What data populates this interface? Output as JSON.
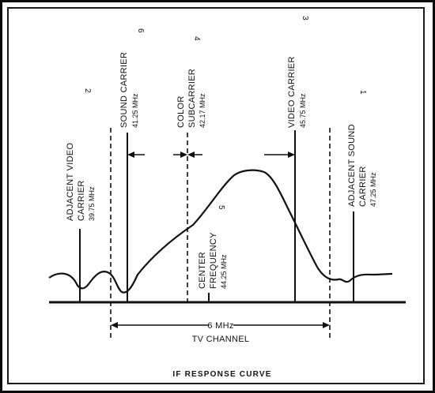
{
  "caption": "IF RESPONSE CURVE",
  "channel": {
    "width": "6 MHz",
    "name": "TV CHANNEL"
  },
  "labels": {
    "adjacent_video": {
      "number": "2",
      "line1": "ADJACENT VIDEO",
      "line2": "CARRIER",
      "freq": "39.75 MHz"
    },
    "sound_carrier": {
      "number": "6",
      "line1": "SOUND CARRIER",
      "freq": "41.25 MHz"
    },
    "color_subcarrier": {
      "number": "4",
      "line1": "COLOR",
      "line2": "SUBCARRIER",
      "freq": "42.17 MHz"
    },
    "video_carrier": {
      "number": "3",
      "line1": "VIDEO CARRIER",
      "freq": "45.75 MHz"
    },
    "adjacent_sound": {
      "number": "1",
      "line1": "ADJACENT SOUND",
      "line2": "CARRIER",
      "freq": "47.25 MHz"
    },
    "center_frequency": {
      "number": "5",
      "line1": "CENTER",
      "line2": "FREQUENCY",
      "freq": "44.25 MHz"
    }
  },
  "colors": {
    "ink": "#111111",
    "background": "#ffffff"
  }
}
